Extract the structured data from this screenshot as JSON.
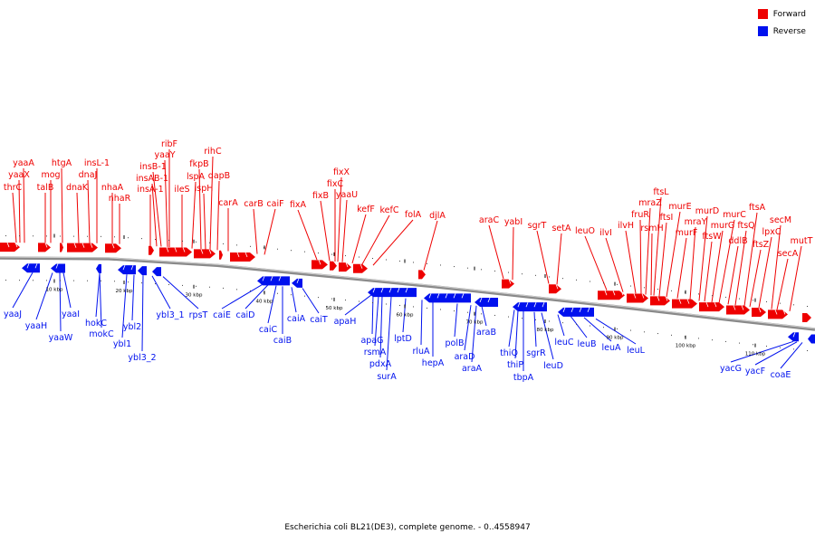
{
  "legend": {
    "forward_label": "Forward",
    "reverse_label": "Reverse",
    "forward_color": "#ee0000",
    "reverse_color": "#0011ee"
  },
  "caption": "Escherichia coli BL21(DE3), complete genome. - 0..4558947",
  "axis": {
    "ticks": [
      "10 kbp",
      "20 kbp",
      "30 kbp",
      "40 kbp",
      "50 kbp",
      "60 kbp",
      "70 kbp",
      "80 kbp",
      "90 kbp",
      "100 kbp",
      "110 kbp"
    ]
  },
  "forward_genes": [
    "thrC",
    "yaaX",
    "yaaA",
    "talB",
    "mog",
    "htgA",
    "dnaK",
    "dnaJ",
    "insL-1",
    "nhaA",
    "nhaR",
    "insA-1",
    "insAB-1",
    "insB-1",
    "yaaY",
    "ribF",
    "ileS",
    "lspA",
    "fkpB",
    "ispH",
    "rihC",
    "dapB",
    "carA",
    "carB",
    "caiF",
    "fixA",
    "fixB",
    "fixC",
    "fixX",
    "yaaU",
    "kefF",
    "kefC",
    "folA",
    "djlA",
    "araC",
    "yabI",
    "sgrT",
    "setA",
    "leuO",
    "ilvI",
    "ilvH",
    "fruR",
    "mraZ",
    "rsmH",
    "ftsL",
    "ftsI",
    "murE",
    "murF",
    "mraY",
    "murD",
    "ftsW",
    "murG",
    "murC",
    "ddlB",
    "ftsQ",
    "ftsA",
    "ftsZ",
    "lpxC",
    "secM",
    "secA",
    "mutT"
  ],
  "reverse_genes": [
    "yaaJ",
    "yaaH",
    "yaaW",
    "yaaI",
    "hokC",
    "mokC",
    "ybl1",
    "ybl2",
    "ybl3_2",
    "ybl3_1",
    "rpsT",
    "caiE",
    "caiD",
    "caiC",
    "caiB",
    "caiA",
    "caiT",
    "apaH",
    "apaG",
    "rsmA",
    "pdxA",
    "surA",
    "lptD",
    "rluA",
    "hepA",
    "polB",
    "araD",
    "araA",
    "araB",
    "thiQ",
    "thiP",
    "tbpA",
    "sgrR",
    "leuD",
    "leuC",
    "leuB",
    "leuA",
    "leuL",
    "yacG",
    "yacF",
    "coaE"
  ]
}
